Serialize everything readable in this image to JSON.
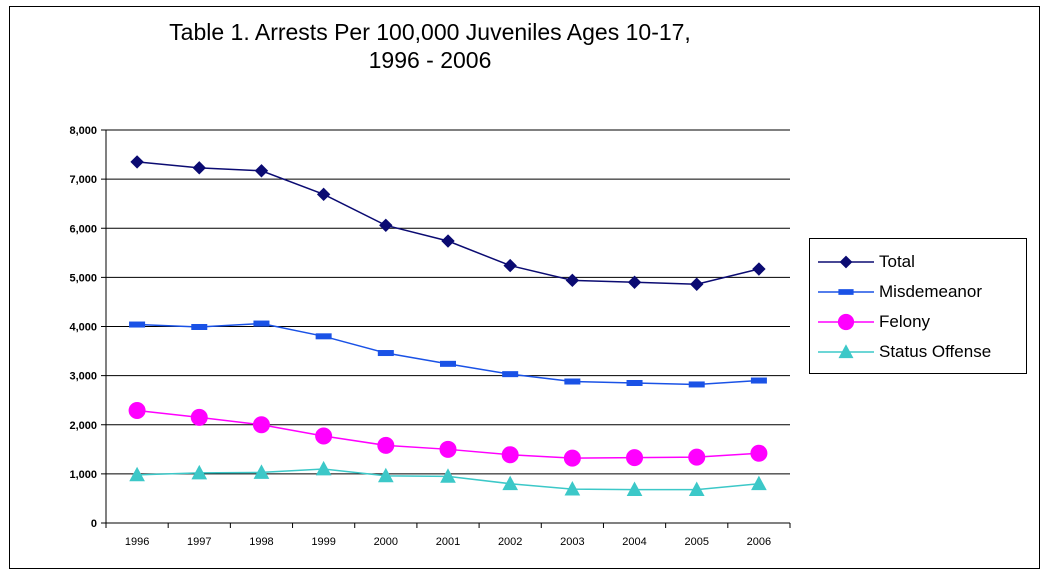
{
  "chart_data": {
    "type": "line",
    "title_line1": "Table 1. Arrests Per 100,000 Juveniles Ages 10-17,",
    "title_line2": "1996 - 2006",
    "xlabel": "",
    "ylabel": "",
    "categories": [
      "1996",
      "1997",
      "1998",
      "1999",
      "2000",
      "2001",
      "2002",
      "2003",
      "2004",
      "2005",
      "2006"
    ],
    "ylim": [
      0,
      8000
    ],
    "yticks": [
      0,
      1000,
      2000,
      3000,
      4000,
      5000,
      6000,
      7000,
      8000
    ],
    "ytick_labels": [
      "0",
      "1,000",
      "2,000",
      "3,000",
      "4,000",
      "5,000",
      "6,000",
      "7,000",
      "8,000"
    ],
    "grid": "horizontal",
    "legend_position": "right",
    "series": [
      {
        "name": "Total",
        "color": "#0b0b72",
        "marker": "diamond",
        "values": [
          7350,
          7230,
          7170,
          6690,
          6060,
          5740,
          5240,
          4940,
          4900,
          4860,
          5170
        ]
      },
      {
        "name": "Misdemeanor",
        "color": "#1a52e6",
        "marker": "dash",
        "values": [
          4040,
          3990,
          4060,
          3800,
          3460,
          3240,
          3030,
          2880,
          2850,
          2820,
          2900
        ]
      },
      {
        "name": "Felony",
        "color": "#ff00ff",
        "marker": "circle",
        "values": [
          2290,
          2150,
          2000,
          1770,
          1580,
          1500,
          1390,
          1320,
          1330,
          1340,
          1420
        ]
      },
      {
        "name": "Status Offense",
        "color": "#3cc8c8",
        "marker": "triangle",
        "values": [
          980,
          1020,
          1030,
          1100,
          960,
          950,
          800,
          690,
          680,
          680,
          800
        ]
      }
    ]
  }
}
